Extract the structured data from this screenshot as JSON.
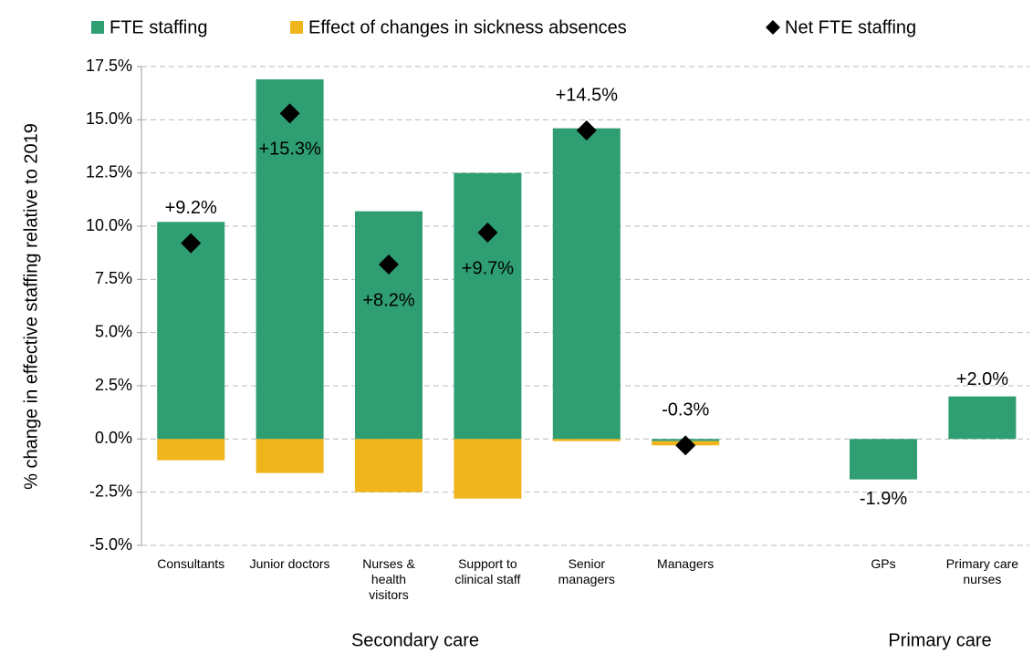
{
  "chart_data": {
    "type": "bar",
    "stacked": true,
    "y_label": "% change in effective staffing relative to 2019",
    "categories": [
      "Consultants",
      "Junior doctors",
      "Nurses & health visitors",
      "Support to clinical staff",
      "Senior managers",
      "Managers",
      null,
      "GPs",
      "Primary care nurses"
    ],
    "group_labels": [
      "Secondary care",
      "Primary care"
    ],
    "series": [
      {
        "name": "FTE staffing",
        "color": "#2f9e72",
        "values": [
          10.2,
          16.9,
          10.7,
          12.5,
          14.6,
          -0.1,
          null,
          -1.9,
          2.0
        ],
        "value_labels": [
          null,
          null,
          null,
          null,
          null,
          null,
          null,
          "-1.9%",
          "+2.0%"
        ]
      },
      {
        "name": "Effect of changes in sickness absences",
        "color": "#f0b41c",
        "values": [
          -1.0,
          -1.6,
          -2.5,
          -2.8,
          -0.1,
          -0.2,
          null,
          null,
          null
        ]
      },
      {
        "name": "Net FTE staffing",
        "type": "scatter",
        "marker": "diamond",
        "color": "#000000",
        "values": [
          9.2,
          15.3,
          8.2,
          9.7,
          14.5,
          -0.3,
          null,
          null,
          null
        ],
        "value_labels": [
          "+9.2%",
          "+15.3%",
          "+8.2%",
          "+9.7%",
          "+14.5%",
          "-0.3%",
          null,
          null,
          null
        ]
      }
    ],
    "ylim": [
      -5,
      17.5
    ],
    "yticks": [
      {
        "value": -5,
        "label": "-5.0%"
      },
      {
        "value": -2.5,
        "label": "-2.5%"
      },
      {
        "value": 0,
        "label": "0.0%"
      },
      {
        "value": 2.5,
        "label": "2.5%"
      },
      {
        "value": 5,
        "label": "5.0%"
      },
      {
        "value": 7.5,
        "label": "7.5%"
      },
      {
        "value": 10,
        "label": "10.0%"
      },
      {
        "value": 12.5,
        "label": "12.5%"
      },
      {
        "value": 15,
        "label": "15.0%"
      },
      {
        "value": 17.5,
        "label": "17.5%"
      }
    ],
    "grid": true,
    "legend": "top"
  }
}
